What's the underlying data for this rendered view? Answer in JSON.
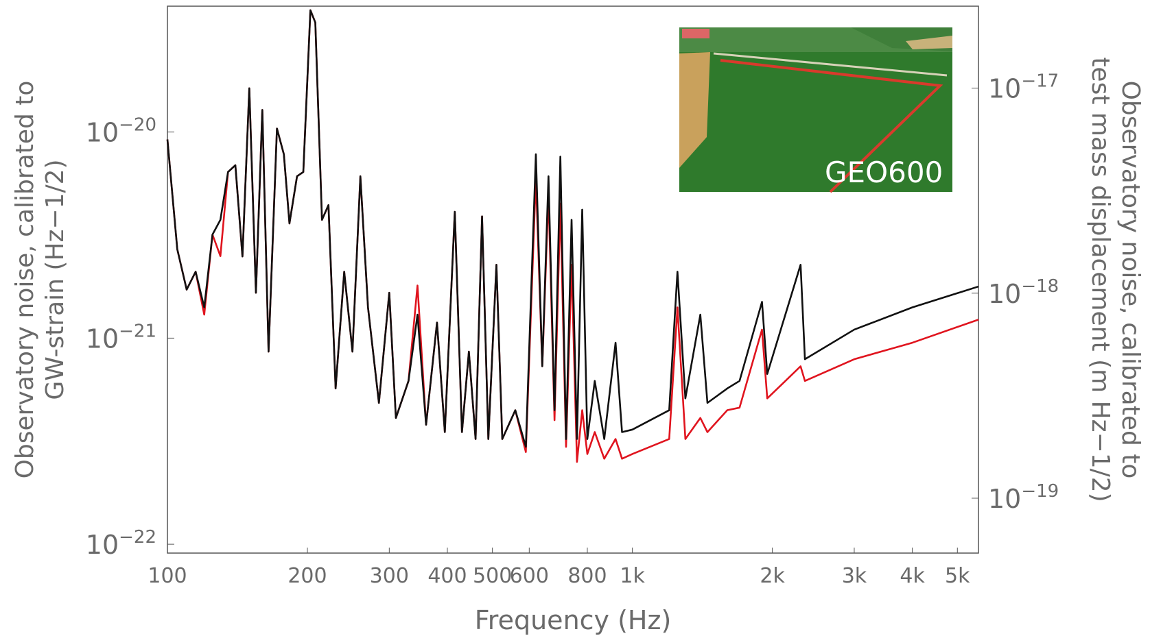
{
  "chart_data": {
    "type": "line",
    "xlabel": "Frequency (Hz)",
    "ylabel": [
      "Observatory noise, calibrated to",
      "GW-strain (Hz−1/2)"
    ],
    "y2label": [
      "Observatory noise, calibrated to",
      "test mass displacement (m Hz−1/2)"
    ],
    "annotation": "GEO600",
    "xscale": "log",
    "yscale": "log",
    "xlim": [
      100,
      5550
    ],
    "ylim": [
      9.06e-23,
      4.08e-20
    ],
    "y2lim": [
      5.4e-20,
      2.51e-17
    ],
    "xticks": [
      100,
      200,
      300,
      400,
      500,
      600,
      800,
      {
        "value": 1000,
        "label": "1k"
      },
      {
        "value": 2000,
        "label": "2k"
      },
      {
        "value": 3000,
        "label": "3k"
      },
      {
        "value": 4000,
        "label": "4k"
      },
      {
        "value": 5000,
        "label": "5k"
      }
    ],
    "yticks": [
      {
        "value": 1e-22,
        "label": "10−22"
      },
      {
        "value": 1e-21,
        "label": "10−21"
      },
      {
        "value": 1e-20,
        "label": "10−20"
      }
    ],
    "y2ticks": [
      {
        "value": 1e-19,
        "label": "10−19"
      },
      {
        "value": 1e-18,
        "label": "10−18"
      },
      {
        "value": 1e-17,
        "label": "10−17"
      }
    ],
    "x": [
      100,
      105,
      110,
      115,
      120,
      125,
      130,
      135,
      140,
      145,
      150,
      155,
      160,
      165,
      172,
      178,
      183,
      190,
      196,
      203,
      208,
      215,
      222,
      230,
      240,
      250,
      260,
      270,
      285,
      300,
      310,
      330,
      345,
      360,
      380,
      395,
      415,
      430,
      445,
      460,
      475,
      490,
      510,
      525,
      560,
      590,
      620,
      640,
      660,
      680,
      700,
      720,
      740,
      760,
      780,
      800,
      830,
      870,
      920,
      950,
      1000,
      1200,
      1250,
      1300,
      1400,
      1450,
      1600,
      1700,
      1900,
      1950,
      2300,
      2350,
      3000,
      4000,
      5550
    ],
    "series": [
      {
        "color": "#e0141e",
        "values": [
          9.2e-21,
          2.7e-21,
          1.72e-21,
          2.1e-21,
          1.3e-21,
          3.18e-21,
          2.5e-21,
          6.4e-21,
          6.9e-21,
          2.49e-21,
          1.63e-20,
          1.66e-21,
          1.28e-20,
          8.6e-22,
          1.04e-20,
          7.8e-21,
          3.6e-21,
          6.1e-21,
          6.4e-21,
          3.9e-20,
          3.4e-20,
          3.75e-21,
          4.42e-21,
          5.7e-22,
          2.1e-21,
          8.6e-22,
          6.1e-21,
          1.41e-21,
          4.85e-22,
          1.66e-21,
          4.1e-22,
          6.2e-22,
          1.8e-21,
          3.8e-22,
          1.19e-21,
          3.5e-22,
          4.1e-21,
          3.5e-22,
          8.6e-22,
          3.24e-22,
          3.9e-21,
          3.24e-22,
          2.27e-21,
          3.24e-22,
          4.47e-22,
          2.8e-22,
          6e-21,
          7.3e-22,
          5e-21,
          4e-22,
          4.5e-21,
          2.97e-22,
          2.27e-21,
          2.51e-22,
          4.47e-22,
          2.74e-22,
          3.5e-22,
          2.6e-22,
          3.24e-22,
          2.6e-22,
          2.74e-22,
          3.24e-22,
          1.41e-21,
          3.24e-22,
          4.1e-22,
          3.5e-22,
          4.47e-22,
          4.6e-22,
          1.1e-21,
          5.1e-22,
          7.3e-22,
          6.2e-22,
          7.9e-22,
          9.5e-22,
          1.23e-21
        ]
      },
      {
        "color": "#111111",
        "values": [
          9.2e-21,
          2.7e-21,
          1.72e-21,
          2.1e-21,
          1.41e-21,
          3.18e-21,
          3.75e-21,
          6.4e-21,
          6.9e-21,
          2.49e-21,
          1.63e-20,
          1.66e-21,
          1.28e-20,
          8.6e-22,
          1.04e-20,
          7.8e-21,
          3.6e-21,
          6.1e-21,
          6.4e-21,
          3.9e-20,
          3.4e-20,
          3.75e-21,
          4.42e-21,
          5.7e-22,
          2.1e-21,
          8.6e-22,
          6.1e-21,
          1.41e-21,
          4.85e-22,
          1.66e-21,
          4.1e-22,
          6.2e-22,
          1.3e-21,
          3.8e-22,
          1.19e-21,
          3.5e-22,
          4.1e-21,
          3.5e-22,
          8.6e-22,
          3.24e-22,
          3.9e-21,
          3.24e-22,
          2.27e-21,
          3.24e-22,
          4.47e-22,
          2.97e-22,
          7.8e-21,
          7.3e-22,
          6.1e-21,
          4.47e-22,
          7.6e-21,
          3.24e-22,
          3.75e-21,
          3.24e-22,
          4.2e-21,
          3.24e-22,
          6.2e-22,
          3.24e-22,
          9.5e-22,
          3.5e-22,
          3.6e-22,
          4.47e-22,
          2.1e-21,
          5.1e-22,
          1.3e-21,
          4.85e-22,
          5.7e-22,
          6.2e-22,
          1.5e-21,
          6.7e-22,
          2.27e-21,
          7.9e-22,
          1.1e-21,
          1.41e-21,
          1.78e-21
        ]
      }
    ]
  }
}
